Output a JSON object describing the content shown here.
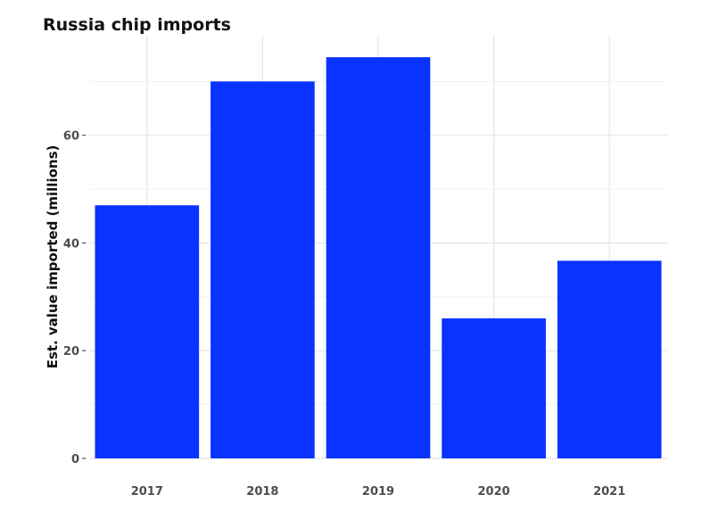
{
  "chart_data": {
    "type": "bar",
    "title": "Russia chip imports",
    "xlabel": "",
    "ylabel": "Est. value imported (millions)",
    "categories": [
      "2017",
      "2018",
      "2019",
      "2020",
      "2021"
    ],
    "values": [
      47,
      70,
      74.5,
      26,
      36.7
    ],
    "yticks": [
      0,
      20,
      40,
      60
    ],
    "ylim": [
      0,
      78.5
    ],
    "grid": true,
    "bar_color": "#0a33ff"
  }
}
